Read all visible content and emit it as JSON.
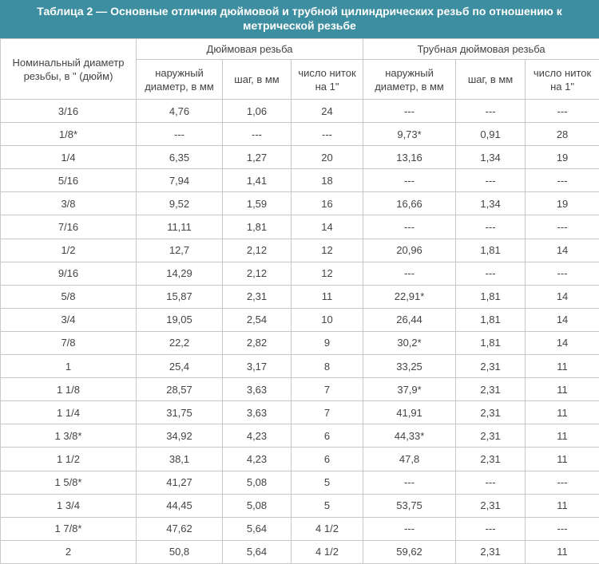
{
  "table": {
    "title": "Таблица 2 — Основные отличия дюймовой и трубной цилиндрических резьб по отношению к метрической резьбе",
    "header": {
      "first": "Номинальный диаметр резьбы, в \" (дюйм)",
      "groups": [
        "Дюймовая резьба",
        "Трубная дюймовая резьба"
      ],
      "columns": [
        "наружный диаметр, в мм",
        "шаг, в мм",
        "число ниток на 1\"",
        "наружный диаметр, в мм",
        "шаг, в мм",
        "число ниток на 1\""
      ]
    },
    "rows": [
      [
        "3/16",
        "4,76",
        "1,06",
        "24",
        "---",
        "---",
        "---"
      ],
      [
        "1/8*",
        "---",
        "---",
        "---",
        "9,73*",
        "0,91",
        "28"
      ],
      [
        "1/4",
        "6,35",
        "1,27",
        "20",
        "13,16",
        "1,34",
        "19"
      ],
      [
        "5/16",
        "7,94",
        "1,41",
        "18",
        "---",
        "---",
        "---"
      ],
      [
        "3/8",
        "9,52",
        "1,59",
        "16",
        "16,66",
        "1,34",
        "19"
      ],
      [
        "7/16",
        "11,11",
        "1,81",
        "14",
        "---",
        "---",
        "---"
      ],
      [
        "1/2",
        "12,7",
        "2,12",
        "12",
        "20,96",
        "1,81",
        "14"
      ],
      [
        "9/16",
        "14,29",
        "2,12",
        "12",
        "---",
        "---",
        "---"
      ],
      [
        "5/8",
        "15,87",
        "2,31",
        "11",
        "22,91*",
        "1,81",
        "14"
      ],
      [
        "3/4",
        "19,05",
        "2,54",
        "10",
        "26,44",
        "1,81",
        "14"
      ],
      [
        "7/8",
        "22,2",
        "2,82",
        "9",
        "30,2*",
        "1,81",
        "14"
      ],
      [
        "1",
        "25,4",
        "3,17",
        "8",
        "33,25",
        "2,31",
        "11"
      ],
      [
        "1 1/8",
        "28,57",
        "3,63",
        "7",
        "37,9*",
        "2,31",
        "11"
      ],
      [
        "1 1/4",
        "31,75",
        "3,63",
        "7",
        "41,91",
        "2,31",
        "11"
      ],
      [
        "1 3/8*",
        "34,92",
        "4,23",
        "6",
        "44,33*",
        "2,31",
        "11"
      ],
      [
        "1 1/2",
        "38,1",
        "4,23",
        "6",
        "47,8",
        "2,31",
        "11"
      ],
      [
        "1 5/8*",
        "41,27",
        "5,08",
        "5",
        "---",
        "---",
        "---"
      ],
      [
        "1 3/4",
        "44,45",
        "5,08",
        "5",
        "53,75",
        "2,31",
        "11"
      ],
      [
        "1 7/8*",
        "47,62",
        "5,64",
        "4 1/2",
        "---",
        "---",
        "---"
      ],
      [
        "2",
        "50,8",
        "5,64",
        "4 1/2",
        "59,62",
        "2,31",
        "11"
      ]
    ]
  }
}
